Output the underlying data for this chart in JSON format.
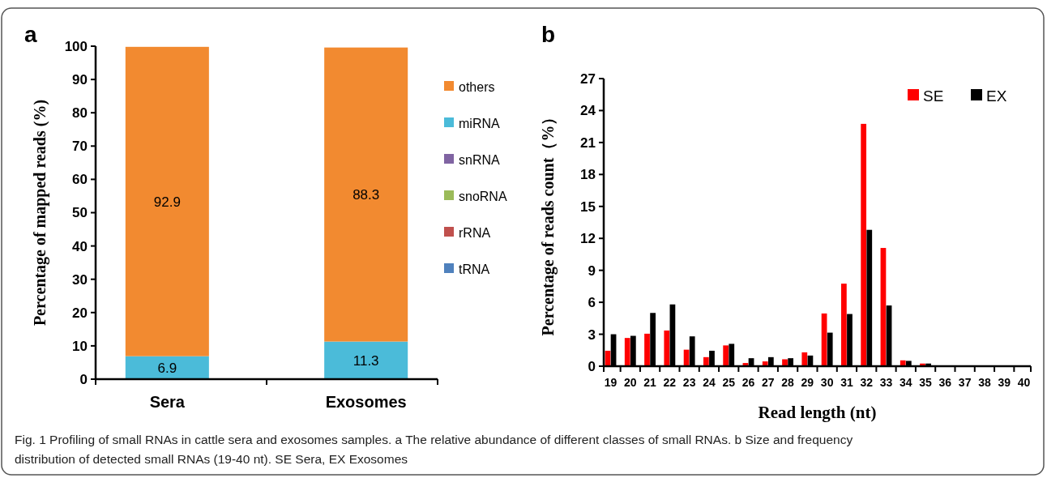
{
  "chart_data": [
    {
      "type": "bar",
      "title": "a",
      "ylabel": "Percentage of mapped reads (%)",
      "categories": [
        "Sera",
        "Exosomes"
      ],
      "stacked": true,
      "legend": "right",
      "ylim": [
        0,
        100
      ],
      "yticks": [
        0,
        10,
        20,
        30,
        40,
        50,
        60,
        70,
        80,
        90,
        100
      ],
      "series": [
        {
          "name": "tRNA",
          "color": "#4f81bd",
          "values": [
            0,
            0
          ]
        },
        {
          "name": "rRNA",
          "color": "#c0504d",
          "values": [
            0,
            0
          ]
        },
        {
          "name": "snoRNA",
          "color": "#9bbb59",
          "values": [
            0,
            0
          ]
        },
        {
          "name": "snRNA",
          "color": "#8064a2",
          "values": [
            0,
            0
          ]
        },
        {
          "name": "miRNA",
          "color": "#4bbbd9",
          "values": [
            6.9,
            11.3
          ],
          "value_labels": [
            "6.9",
            "11.3"
          ]
        },
        {
          "name": "others",
          "color": "#f28a30",
          "values": [
            92.9,
            88.3
          ],
          "value_labels": [
            "92.9",
            "88.3"
          ]
        }
      ]
    },
    {
      "type": "bar",
      "title": "b",
      "xlabel": "Read length (nt)",
      "ylabel": "Percentage of reads count（%）",
      "categories": [
        "19",
        "20",
        "21",
        "22",
        "23",
        "24",
        "25",
        "26",
        "27",
        "28",
        "29",
        "30",
        "31",
        "32",
        "33",
        "34",
        "35",
        "36",
        "37",
        "38",
        "39",
        "40"
      ],
      "legend": "top right",
      "ylim": [
        0,
        27
      ],
      "yticks": [
        0,
        3,
        6,
        9,
        12,
        15,
        18,
        21,
        24,
        27
      ],
      "annotations": [
        "Fig. 1 Profiling of small RNAs in cattle sera and exosomes samples. a The relative abundance of different classes of small RNAs. b Size and frequency distribution of detected small RNAs (19-40 nt). SE Sera, EX Exosomes"
      ],
      "series": [
        {
          "name": "SE",
          "color": "#ff0000",
          "values": [
            1.45,
            2.65,
            3.05,
            3.35,
            1.55,
            0.85,
            1.95,
            0.3,
            0.45,
            0.65,
            1.3,
            4.95,
            7.75,
            22.75,
            11.1,
            0.55,
            0.25,
            null,
            0,
            0,
            0,
            0
          ]
        },
        {
          "name": "EX",
          "color": "#000000",
          "values": [
            3.0,
            2.85,
            5.0,
            5.8,
            2.8,
            1.45,
            2.1,
            0.75,
            0.85,
            0.75,
            1.0,
            3.15,
            4.9,
            12.8,
            5.7,
            0.5,
            0.25,
            null,
            0,
            0,
            0,
            0
          ]
        }
      ]
    }
  ]
}
